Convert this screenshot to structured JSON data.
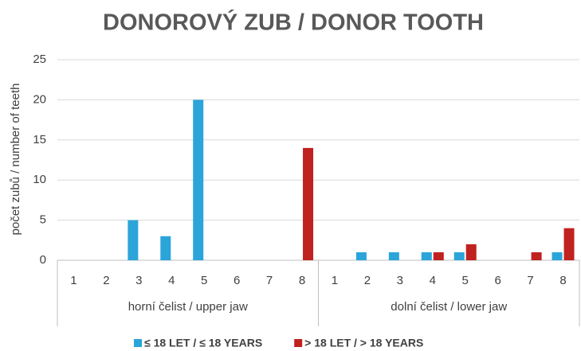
{
  "chart_data": {
    "type": "bar",
    "title": "DONOROVÝ ZUB / DONOR TOOTH",
    "y_label": "počet zubů / number of teeth",
    "groups": [
      {
        "label": "horní čelist / upper jaw",
        "categories": [
          "1",
          "2",
          "3",
          "4",
          "5",
          "6",
          "7",
          "8"
        ]
      },
      {
        "label": "dolní čelist / lower jaw",
        "categories": [
          "1",
          "2",
          "3",
          "4",
          "5",
          "6",
          "7",
          "8"
        ]
      }
    ],
    "series": [
      {
        "name": "≤ 18 LET / ≤ 18 YEARS",
        "color": "#2ba4d9",
        "values": [
          0,
          0,
          5,
          3,
          20,
          0,
          0,
          0,
          0,
          1,
          1,
          1,
          1,
          0,
          0,
          1
        ]
      },
      {
        "name": "> 18 LET / > 18 YEARS",
        "color": "#c0221f",
        "values": [
          0,
          0,
          0,
          0,
          0,
          0,
          0,
          14,
          0,
          0,
          0,
          1,
          2,
          0,
          1,
          4
        ]
      }
    ],
    "ylim": [
      0,
      25
    ],
    "yticks": [
      0,
      5,
      10,
      15,
      20,
      25
    ],
    "grid": true,
    "legend": "bottom"
  }
}
